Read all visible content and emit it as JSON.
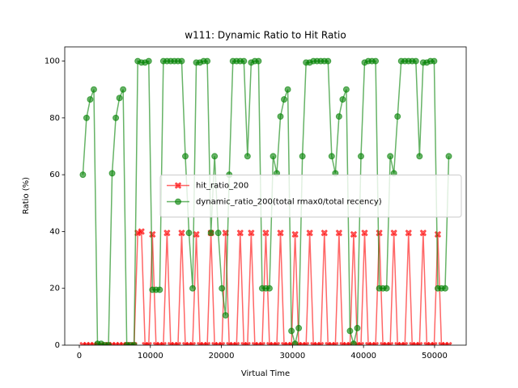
{
  "chart_data": {
    "type": "line",
    "title": "w111: Dynamic Ratio to Hit Ratio",
    "x_label": "Virtual Time",
    "y_label": "Ratio (%)",
    "x": [
      500,
      1015,
      1530,
      2045,
      2560,
      3075,
      3590,
      4105,
      4620,
      5135,
      5650,
      6165,
      6680,
      7195,
      7710,
      8225,
      8740,
      9255,
      9770,
      10285,
      10800,
      11315,
      11830,
      12345,
      12860,
      13375,
      13890,
      14405,
      14920,
      15435,
      15950,
      16465,
      16980,
      17495,
      18010,
      18525,
      19040,
      19555,
      20070,
      20585,
      21100,
      21615,
      22130,
      22645,
      23160,
      23675,
      24190,
      24705,
      25220,
      25735,
      26250,
      26765,
      27280,
      27795,
      28310,
      28825,
      29340,
      29855,
      30370,
      30885,
      31400,
      31915,
      32430,
      32945,
      33460,
      33975,
      34490,
      35005,
      35520,
      36035,
      36550,
      37065,
      37580,
      38095,
      38610,
      39125,
      39640,
      40155,
      40670,
      41185,
      41700,
      42215,
      42730,
      43245,
      43760,
      44275,
      44790,
      45305,
      45820,
      46335,
      46850,
      47365,
      47880,
      48395,
      48910,
      49425,
      49940,
      50455,
      50970,
      51485,
      52000
    ],
    "series": [
      {
        "name": "hit_ratio_200",
        "color": "#ff0000",
        "marker": "X",
        "values": [
          0,
          0,
          0,
          0,
          0,
          0,
          0,
          0,
          0,
          0,
          0,
          0,
          0,
          0,
          0,
          39.5,
          40,
          0,
          0,
          39,
          0,
          0,
          0,
          39.5,
          0,
          0,
          0,
          39.5,
          0,
          0,
          0,
          39,
          0,
          0,
          0,
          39.5,
          0,
          0,
          0,
          39.5,
          0,
          0,
          0,
          39.5,
          0,
          0,
          39.5,
          0,
          0,
          0,
          39.5,
          0,
          0,
          0,
          39.5,
          0,
          0,
          0,
          39,
          0,
          0,
          0,
          39.5,
          0,
          0,
          0,
          39.5,
          0,
          0,
          0,
          39.5,
          0,
          0,
          0,
          39,
          0,
          0,
          39.5,
          0,
          0,
          0,
          39.5,
          0,
          0,
          0,
          39.5,
          0,
          0,
          0,
          39.5,
          0,
          0,
          0,
          39.5,
          0,
          0,
          0,
          39,
          0,
          0,
          0
        ]
      },
      {
        "name": "dynamic_ratio_200(total rmax0/total recency)",
        "color": "#008000",
        "marker": "o",
        "values": [
          60,
          80,
          86.5,
          90,
          0.5,
          0.5,
          0,
          0,
          60.5,
          80,
          87,
          90,
          0,
          0,
          0,
          100,
          99.5,
          99.5,
          100,
          19.5,
          19.5,
          19.5,
          100,
          100,
          100,
          100,
          100,
          100,
          66.5,
          39.5,
          20,
          99.5,
          99.5,
          100,
          100,
          39.5,
          66.5,
          39.5,
          20,
          10.5,
          60,
          100,
          100,
          100,
          100,
          66.5,
          99.5,
          100,
          100,
          20,
          20,
          20,
          66.5,
          60.5,
          80.5,
          86.5,
          90,
          5,
          0.5,
          6,
          66.5,
          99.5,
          99.5,
          100,
          100,
          100,
          100,
          100,
          66.5,
          60.5,
          80.5,
          86.5,
          90,
          5,
          0.5,
          6,
          66.5,
          99.5,
          100,
          100,
          100,
          20,
          20,
          20,
          66.5,
          60.5,
          80.5,
          100,
          100,
          100,
          100,
          100,
          66.5,
          99.5,
          99.5,
          100,
          100,
          20,
          20,
          20,
          66.5
        ]
      }
    ],
    "xlim": [
      -2050,
      54450
    ],
    "ylim": [
      0,
      105
    ],
    "xticks": [
      0,
      10000,
      20000,
      30000,
      40000,
      50000
    ],
    "yticks": [
      0,
      20,
      40,
      60,
      80,
      100
    ],
    "legend_loc": "center right",
    "alpha": 0.6
  }
}
